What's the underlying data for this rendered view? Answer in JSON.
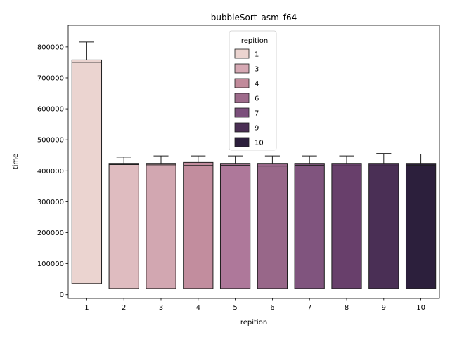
{
  "chart_data": {
    "type": "box",
    "title": "bubbleSort_asm_f64",
    "xlabel": "repition",
    "ylabel": "time",
    "ylim": [
      -12000,
      870000
    ],
    "yticks": [
      0,
      100000,
      200000,
      300000,
      400000,
      500000,
      600000,
      700000,
      800000
    ],
    "grid": false,
    "legend": {
      "title": "repition",
      "placement": "upper-center",
      "entries": [
        "1",
        "3",
        "4",
        "6",
        "7",
        "9",
        "10"
      ],
      "colors": [
        "#ebd4d0",
        "#d6a9b4",
        "#c18a9a",
        "#9e6b8b",
        "#7b4f7b",
        "#4b2f55",
        "#2c1f3c"
      ]
    },
    "categories": [
      "1",
      "2",
      "3",
      "4",
      "5",
      "6",
      "7",
      "8",
      "9",
      "10"
    ],
    "colors": [
      "#ebd4d0",
      "#dfbcc0",
      "#d2a7b1",
      "#c28d9e",
      "#ae789a",
      "#986789",
      "#80547e",
      "#683f6b",
      "#4a2f55",
      "#2c1f3c"
    ],
    "boxes": [
      {
        "whislo": 36000,
        "q1": 36000,
        "med": 750000,
        "q3": 758000,
        "whishi": 816000
      },
      {
        "whislo": 20000,
        "q1": 20000,
        "med": 420000,
        "q3": 424000,
        "whishi": 444000
      },
      {
        "whislo": 20000,
        "q1": 20000,
        "med": 419000,
        "q3": 424000,
        "whishi": 448000
      },
      {
        "whislo": 20000,
        "q1": 20000,
        "med": 417000,
        "q3": 427000,
        "whishi": 448000
      },
      {
        "whislo": 20000,
        "q1": 20000,
        "med": 418000,
        "q3": 424000,
        "whishi": 448000
      },
      {
        "whislo": 20000,
        "q1": 20000,
        "med": 415000,
        "q3": 424000,
        "whishi": 448000
      },
      {
        "whislo": 20000,
        "q1": 20000,
        "med": 418000,
        "q3": 424000,
        "whishi": 448000
      },
      {
        "whislo": 20000,
        "q1": 20000,
        "med": 416000,
        "q3": 424000,
        "whishi": 448000
      },
      {
        "whislo": 20000,
        "q1": 20000,
        "med": 416000,
        "q3": 424000,
        "whishi": 456000
      },
      {
        "whislo": 20000,
        "q1": 20000,
        "med": 418000,
        "q3": 424000,
        "whishi": 454000
      }
    ]
  }
}
